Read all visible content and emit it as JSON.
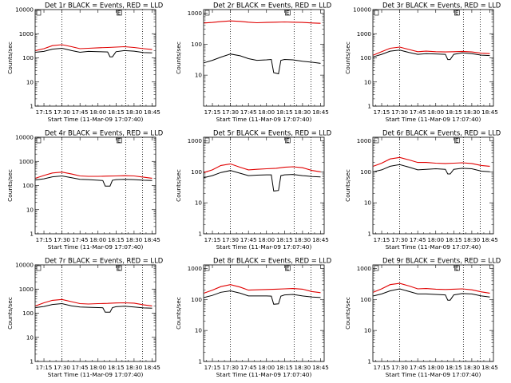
{
  "figure": {
    "colors": {
      "events": "#000000",
      "lld": "#e00000",
      "background": "#ffffff"
    }
  },
  "chart_data": [
    {
      "type": "line",
      "title": "Det 1r BLACK = Events, RED = LLD",
      "ylabel": "Counts/sec",
      "xlabel": "Start Time (11-Mar-09 17:07:40)",
      "x_ticks": [
        "17:15",
        "17:30",
        "17:45",
        "18:00",
        "18:15",
        "18:30",
        "18:45"
      ],
      "y_ticks": [
        "1",
        "10",
        "100",
        "1000",
        "10000"
      ],
      "y_scale": "log",
      "ylim": [
        1,
        10000
      ],
      "vlines": [
        "17:30",
        "18:23",
        "18:37"
      ],
      "flag": "E",
      "series": [
        {
          "name": "Events",
          "color": "#000000",
          "x": [
            "17:08",
            "17:15",
            "17:22",
            "17:30",
            "17:38",
            "17:45",
            "17:52",
            "18:00",
            "18:08",
            "18:10",
            "18:12",
            "18:15",
            "18:22",
            "18:30",
            "18:38",
            "18:45"
          ],
          "y": [
            170,
            185,
            230,
            250,
            200,
            170,
            185,
            180,
            175,
            110,
            110,
            180,
            200,
            190,
            165,
            160
          ]
        },
        {
          "name": "LLD",
          "color": "#e00000",
          "x": [
            "17:08",
            "17:15",
            "17:22",
            "17:30",
            "17:38",
            "17:45",
            "17:52",
            "18:00",
            "18:08",
            "18:15",
            "18:22",
            "18:30",
            "18:38",
            "18:45"
          ],
          "y": [
            200,
            240,
            320,
            350,
            290,
            240,
            250,
            260,
            270,
            280,
            290,
            270,
            240,
            220
          ]
        }
      ]
    },
    {
      "type": "line",
      "title": "Det 2r BLACK = Events, RED = LLD",
      "ylabel": "Counts/sec",
      "xlabel": "Start Time (11-Mar-09 17:07:40)",
      "x_ticks": [
        "17:15",
        "17:30",
        "17:45",
        "18:00",
        "18:15",
        "18:30",
        "18:45"
      ],
      "y_ticks": [
        "10",
        "100",
        "1000"
      ],
      "y_scale": "log",
      "ylim": [
        1,
        1300
      ],
      "vlines": [
        "17:30",
        "18:23",
        "18:37"
      ],
      "flag": "E",
      "series": [
        {
          "name": "Events",
          "color": "#000000",
          "x": [
            "17:08",
            "17:15",
            "17:22",
            "17:30",
            "17:38",
            "17:45",
            "17:52",
            "18:00",
            "18:04",
            "18:06",
            "18:10",
            "18:12",
            "18:15",
            "18:22",
            "18:30",
            "18:38",
            "18:45"
          ],
          "y": [
            25,
            30,
            38,
            48,
            42,
            34,
            30,
            31,
            32,
            12,
            11,
            30,
            32,
            31,
            28,
            26,
            24
          ]
        },
        {
          "name": "LLD",
          "color": "#e00000",
          "x": [
            "17:08",
            "17:15",
            "17:22",
            "17:30",
            "17:38",
            "17:45",
            "17:52",
            "18:00",
            "18:08",
            "18:15",
            "18:22",
            "18:30",
            "18:38",
            "18:45"
          ],
          "y": [
            480,
            500,
            530,
            560,
            540,
            510,
            490,
            500,
            510,
            520,
            510,
            500,
            480,
            470
          ]
        }
      ]
    },
    {
      "type": "line",
      "title": "Det 3r BLACK = Events, RED = LLD",
      "ylabel": "Counts/sec",
      "xlabel": "Start Time (11-Mar-09 17:07:40)",
      "x_ticks": [
        "17:15",
        "17:30",
        "17:45",
        "18:00",
        "18:15",
        "18:30",
        "18:45"
      ],
      "y_ticks": [
        "1",
        "10",
        "100",
        "1000",
        "10000"
      ],
      "y_scale": "log",
      "ylim": [
        1,
        10000
      ],
      "vlines": [
        "17:30",
        "18:23",
        "18:37"
      ],
      "flag": "E",
      "series": [
        {
          "name": "Events",
          "color": "#000000",
          "x": [
            "17:08",
            "17:15",
            "17:22",
            "17:30",
            "17:38",
            "17:45",
            "17:52",
            "18:00",
            "18:08",
            "18:10",
            "18:12",
            "18:15",
            "18:22",
            "18:30",
            "18:38",
            "18:45"
          ],
          "y": [
            110,
            140,
            190,
            210,
            165,
            140,
            150,
            145,
            140,
            85,
            85,
            140,
            160,
            150,
            130,
            125
          ]
        },
        {
          "name": "LLD",
          "color": "#e00000",
          "x": [
            "17:08",
            "17:15",
            "17:22",
            "17:30",
            "17:38",
            "17:45",
            "17:52",
            "18:00",
            "18:08",
            "18:15",
            "18:22",
            "18:30",
            "18:38",
            "18:45"
          ],
          "y": [
            130,
            180,
            250,
            280,
            220,
            180,
            190,
            180,
            175,
            180,
            185,
            175,
            155,
            150
          ]
        }
      ]
    },
    {
      "type": "line",
      "title": "Det 4r BLACK = Events, RED = LLD",
      "ylabel": "Counts/sec",
      "xlabel": "Start Time (11-Mar-09 17:07:40)",
      "x_ticks": [
        "17:15",
        "17:30",
        "17:45",
        "18:00",
        "18:15",
        "18:30",
        "18:45"
      ],
      "y_ticks": [
        "1",
        "10",
        "100",
        "1000",
        "10000"
      ],
      "y_scale": "log",
      "ylim": [
        1,
        10000
      ],
      "vlines": [
        "17:30",
        "18:23",
        "18:37"
      ],
      "flag": "E",
      "series": [
        {
          "name": "Events",
          "color": "#000000",
          "x": [
            "17:08",
            "17:15",
            "17:22",
            "17:30",
            "17:38",
            "17:45",
            "17:52",
            "18:00",
            "18:04",
            "18:06",
            "18:10",
            "18:12",
            "18:15",
            "18:22",
            "18:30",
            "18:38",
            "18:45"
          ],
          "y": [
            170,
            190,
            230,
            250,
            210,
            180,
            175,
            165,
            160,
            95,
            95,
            165,
            175,
            180,
            175,
            165,
            160
          ]
        },
        {
          "name": "LLD",
          "color": "#e00000",
          "x": [
            "17:08",
            "17:15",
            "17:22",
            "17:30",
            "17:38",
            "17:45",
            "17:52",
            "18:00",
            "18:08",
            "18:15",
            "18:22",
            "18:30",
            "18:38",
            "18:45"
          ],
          "y": [
            200,
            260,
            330,
            360,
            300,
            250,
            240,
            240,
            245,
            250,
            255,
            250,
            220,
            200
          ]
        }
      ]
    },
    {
      "type": "line",
      "title": "Det 5r BLACK = Events, RED = LLD",
      "ylabel": "Counts/sec",
      "xlabel": "Start Time (11-Mar-09 17:07:40)",
      "x_ticks": [
        "17:15",
        "17:30",
        "17:45",
        "18:00",
        "18:15",
        "18:30",
        "18:45"
      ],
      "y_ticks": [
        "1",
        "10",
        "100",
        "1000"
      ],
      "y_scale": "log",
      "ylim": [
        1,
        1300
      ],
      "vlines": [
        "17:30",
        "18:23",
        "18:37"
      ],
      "flag": "E",
      "series": [
        {
          "name": "Events",
          "color": "#000000",
          "x": [
            "17:08",
            "17:15",
            "17:22",
            "17:30",
            "17:38",
            "17:45",
            "17:52",
            "18:00",
            "18:04",
            "18:06",
            "18:10",
            "18:12",
            "18:15",
            "18:22",
            "18:30",
            "18:38",
            "18:45"
          ],
          "y": [
            65,
            75,
            95,
            110,
            90,
            75,
            78,
            80,
            80,
            24,
            25,
            75,
            80,
            82,
            75,
            70,
            68
          ]
        },
        {
          "name": "LLD",
          "color": "#e00000",
          "x": [
            "17:08",
            "17:15",
            "17:22",
            "17:30",
            "17:38",
            "17:45",
            "17:52",
            "18:00",
            "18:08",
            "18:15",
            "18:22",
            "18:30",
            "18:38",
            "18:45"
          ],
          "y": [
            95,
            115,
            160,
            180,
            140,
            115,
            120,
            125,
            130,
            140,
            145,
            135,
            110,
            100
          ]
        }
      ]
    },
    {
      "type": "line",
      "title": "Det 6r BLACK = Events, RED = LLD",
      "ylabel": "Counts/sec",
      "xlabel": "Start Time (11-Mar-09 17:07:40)",
      "x_ticks": [
        "17:15",
        "17:30",
        "17:45",
        "18:00",
        "18:15",
        "18:30",
        "18:45"
      ],
      "y_ticks": [
        "1",
        "10",
        "100",
        "1000"
      ],
      "y_scale": "log",
      "ylim": [
        1,
        1300
      ],
      "vlines": [
        "17:30",
        "18:23",
        "18:37"
      ],
      "flag": "E",
      "series": [
        {
          "name": "Events",
          "color": "#000000",
          "x": [
            "17:08",
            "17:15",
            "17:22",
            "17:30",
            "17:38",
            "17:45",
            "17:52",
            "18:00",
            "18:08",
            "18:10",
            "18:12",
            "18:15",
            "18:22",
            "18:30",
            "18:38",
            "18:45"
          ],
          "y": [
            100,
            115,
            150,
            170,
            140,
            115,
            120,
            125,
            120,
            85,
            85,
            120,
            130,
            125,
            105,
            100
          ]
        },
        {
          "name": "LLD",
          "color": "#e00000",
          "x": [
            "17:08",
            "17:15",
            "17:22",
            "17:30",
            "17:38",
            "17:45",
            "17:52",
            "18:00",
            "18:08",
            "18:15",
            "18:22",
            "18:30",
            "18:38",
            "18:45"
          ],
          "y": [
            150,
            190,
            260,
            290,
            240,
            200,
            200,
            190,
            185,
            190,
            195,
            185,
            160,
            150
          ]
        }
      ]
    },
    {
      "type": "line",
      "title": "Det 7r BLACK = Events, RED = LLD",
      "ylabel": "Counts/sec",
      "xlabel": "Start Time (11-Mar-09 17:07:40)",
      "x_ticks": [
        "17:15",
        "17:30",
        "17:45",
        "18:00",
        "18:15",
        "18:30",
        "18:45"
      ],
      "y_ticks": [
        "1",
        "10",
        "100",
        "1000",
        "10000"
      ],
      "y_scale": "log",
      "ylim": [
        1,
        10000
      ],
      "vlines": [
        "17:30",
        "18:23",
        "18:37"
      ],
      "flag": "E",
      "series": [
        {
          "name": "Events",
          "color": "#000000",
          "x": [
            "17:08",
            "17:15",
            "17:22",
            "17:30",
            "17:38",
            "17:45",
            "17:52",
            "18:00",
            "18:04",
            "18:06",
            "18:10",
            "18:12",
            "18:15",
            "18:22",
            "18:30",
            "18:38",
            "18:45"
          ],
          "y": [
            170,
            190,
            230,
            250,
            200,
            180,
            175,
            170,
            168,
            110,
            110,
            170,
            185,
            195,
            180,
            165,
            160
          ]
        },
        {
          "name": "LLD",
          "color": "#e00000",
          "x": [
            "17:08",
            "17:15",
            "17:22",
            "17:30",
            "17:38",
            "17:45",
            "17:52",
            "18:00",
            "18:08",
            "18:15",
            "18:22",
            "18:30",
            "18:38",
            "18:45"
          ],
          "y": [
            200,
            270,
            340,
            370,
            300,
            250,
            240,
            250,
            255,
            265,
            270,
            260,
            220,
            200
          ]
        }
      ]
    },
    {
      "type": "line",
      "title": "Det 8r BLACK = Events, RED = LLD",
      "ylabel": "Counts/sec",
      "xlabel": "Start Time (11-Mar-09 17:07:40)",
      "x_ticks": [
        "17:15",
        "17:30",
        "17:45",
        "18:00",
        "18:15",
        "18:30",
        "18:45"
      ],
      "y_ticks": [
        "1",
        "10",
        "100",
        "1000"
      ],
      "y_scale": "log",
      "ylim": [
        1,
        1300
      ],
      "vlines": [
        "17:30",
        "18:23",
        "18:37"
      ],
      "flag": "E",
      "series": [
        {
          "name": "Events",
          "color": "#000000",
          "x": [
            "17:08",
            "17:15",
            "17:22",
            "17:30",
            "17:38",
            "17:45",
            "17:52",
            "18:00",
            "18:04",
            "18:06",
            "18:10",
            "18:12",
            "18:15",
            "18:22",
            "18:30",
            "18:38",
            "18:45"
          ],
          "y": [
            115,
            135,
            170,
            190,
            160,
            130,
            130,
            130,
            128,
            70,
            72,
            128,
            140,
            145,
            130,
            120,
            115
          ]
        },
        {
          "name": "LLD",
          "color": "#e00000",
          "x": [
            "17:08",
            "17:15",
            "17:22",
            "17:30",
            "17:38",
            "17:45",
            "17:52",
            "18:00",
            "18:08",
            "18:15",
            "18:22",
            "18:30",
            "18:38",
            "18:45"
          ],
          "y": [
            160,
            200,
            260,
            300,
            250,
            200,
            205,
            210,
            215,
            220,
            225,
            215,
            180,
            165
          ]
        }
      ]
    },
    {
      "type": "line",
      "title": "Det 9r BLACK = Events, RED = LLD",
      "ylabel": "Counts/sec",
      "xlabel": "Start Time (11-Mar-09 17:07:40)",
      "x_ticks": [
        "17:15",
        "17:30",
        "17:45",
        "18:00",
        "18:15",
        "18:30",
        "18:45"
      ],
      "y_ticks": [
        "1",
        "10",
        "100",
        "1000"
      ],
      "y_scale": "log",
      "ylim": [
        1,
        1300
      ],
      "vlines": [
        "17:30",
        "18:23",
        "18:37"
      ],
      "flag": "E",
      "series": [
        {
          "name": "Events",
          "color": "#000000",
          "x": [
            "17:08",
            "17:15",
            "17:22",
            "17:30",
            "17:38",
            "17:45",
            "17:52",
            "18:00",
            "18:08",
            "18:10",
            "18:12",
            "18:15",
            "18:22",
            "18:30",
            "18:38",
            "18:45"
          ],
          "y": [
            130,
            150,
            190,
            220,
            180,
            150,
            150,
            145,
            140,
            95,
            95,
            140,
            155,
            150,
            130,
            120
          ]
        },
        {
          "name": "LLD",
          "color": "#e00000",
          "x": [
            "17:08",
            "17:15",
            "17:22",
            "17:30",
            "17:38",
            "17:45",
            "17:52",
            "18:00",
            "18:08",
            "18:15",
            "18:22",
            "18:30",
            "18:38",
            "18:45"
          ],
          "y": [
            170,
            220,
            300,
            330,
            270,
            220,
            225,
            215,
            210,
            215,
            220,
            205,
            175,
            160
          ]
        }
      ]
    }
  ]
}
